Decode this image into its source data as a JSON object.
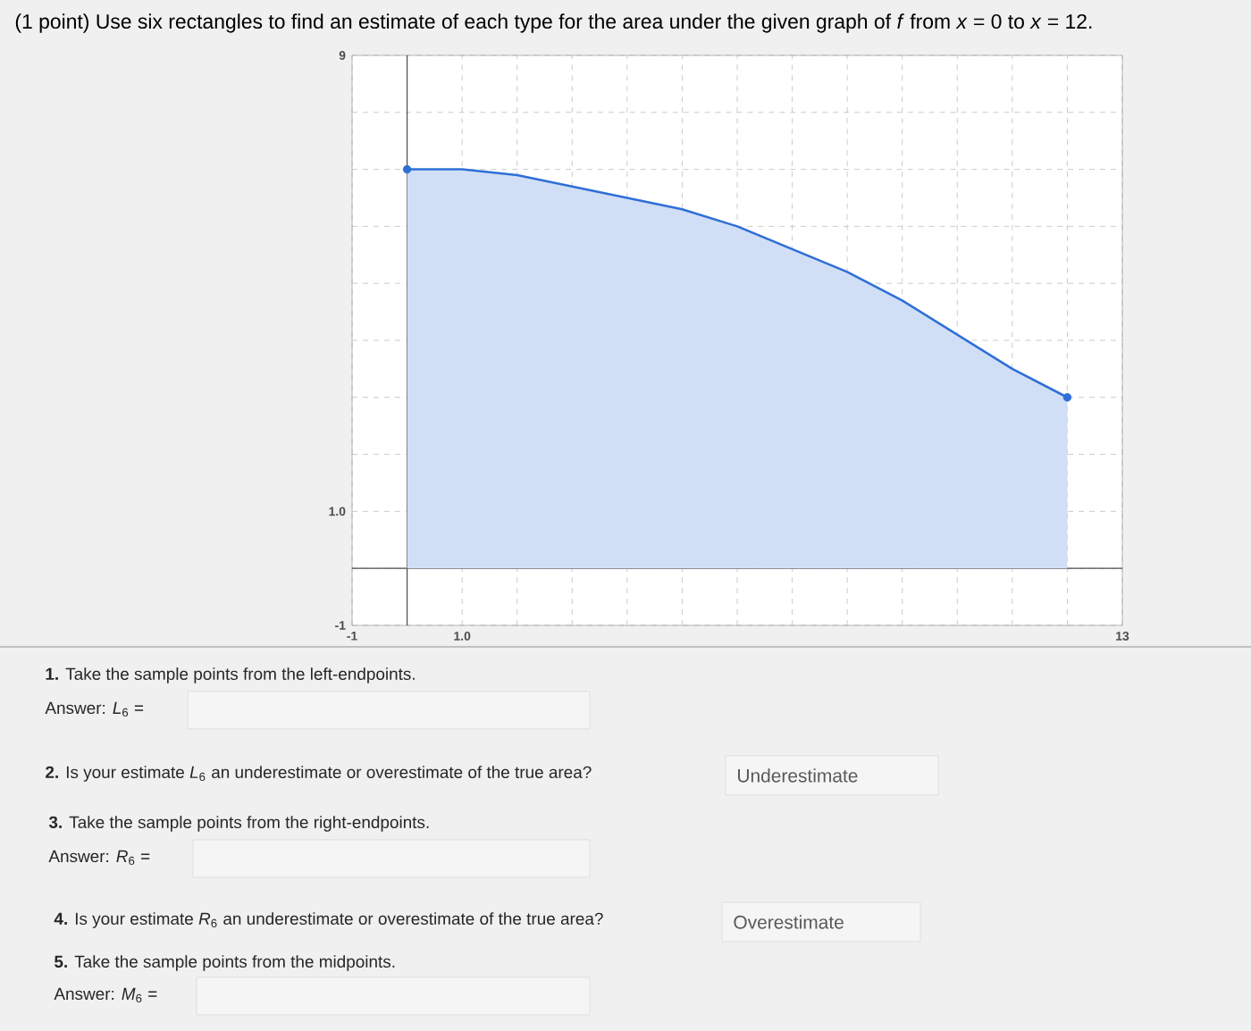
{
  "chart_data": {
    "type": "area",
    "title": "(1 point) Use six rectangles to find an estimate of each type for the area under the given graph of *f* from *x* = 0 to *x* = 12.",
    "x": [
      0,
      1,
      2,
      3,
      4,
      5,
      6,
      7,
      8,
      9,
      10,
      11,
      12
    ],
    "series": [
      {
        "type": "area",
        "color": "#2f6fd6",
        "values": [
          7.0,
          7.0,
          6.9,
          6.7,
          6.5,
          6.3,
          6.0,
          5.6,
          5.2,
          4.7,
          4.1,
          3.5,
          3.0
        ]
      },
      {
        "type": "scatter",
        "color": "#2f6fd6",
        "x": [
          0,
          12
        ],
        "values": [
          7.0,
          3.0
        ]
      }
    ],
    "xlim": [
      -1,
      13
    ],
    "ylim": [
      -1,
      9
    ],
    "xticks": [
      {
        "value": -1,
        "label": "-1"
      },
      {
        "value": 0,
        "label": null
      },
      {
        "value": 1,
        "label": "1.0"
      },
      {
        "value": 2,
        "label": null
      },
      {
        "value": 3,
        "label": null
      },
      {
        "value": 4,
        "label": null
      },
      {
        "value": 5,
        "label": null
      },
      {
        "value": 6,
        "label": null
      },
      {
        "value": 7,
        "label": null
      },
      {
        "value": 8,
        "label": null
      },
      {
        "value": 9,
        "label": null
      },
      {
        "value": 10,
        "label": null
      },
      {
        "value": 11,
        "label": null
      },
      {
        "value": 12,
        "label": null
      },
      {
        "value": 13,
        "label": "13"
      }
    ],
    "yticks": [
      {
        "value": -1,
        "label": "-1"
      },
      {
        "value": 0,
        "label": null
      },
      {
        "value": 1,
        "label": "1.0"
      },
      {
        "value": 2,
        "label": null
      },
      {
        "value": 3,
        "label": null
      },
      {
        "value": 4,
        "label": null
      },
      {
        "value": 5,
        "label": null
      },
      {
        "value": 6,
        "label": null
      },
      {
        "value": 7,
        "label": null
      },
      {
        "value": 8,
        "label": null
      },
      {
        "value": 9,
        "label": "9"
      }
    ],
    "grid": true,
    "annotations": [
      "**1.** Take the sample points from the left-endpoints.",
      "Answer: *L*$_{6}$ =",
      "**2.** Is your estimate *L*$_{6}$ an underestimate or overestimate of the true area?",
      "Underestimate",
      "**3.** Take the sample points from the right-endpoints.",
      "Answer: *R*$_{6}$ =",
      "**4.** Is your estimate *R*$_{6}$ an underestimate or overestimate of the true area?",
      "Overestimate",
      "**5.** Take the sample points from the midpoints.",
      "Answer: *M*$_{6}$ ="
    ]
  }
}
